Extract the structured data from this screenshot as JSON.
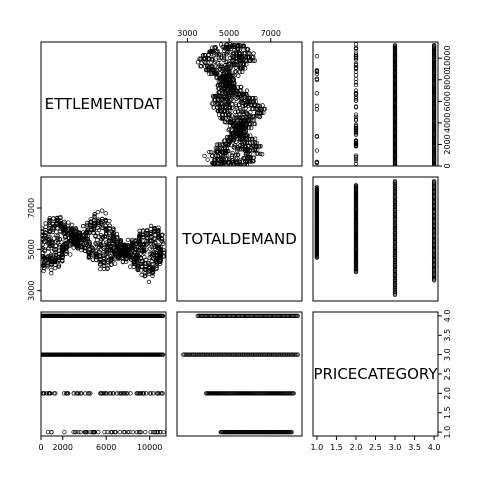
{
  "chart_data": {
    "type": "scatter",
    "variables": [
      {
        "name": "SETTLEMENTDATE",
        "display": "ETTLEMENTDAT",
        "range": [
          0,
          11500
        ]
      },
      {
        "name": "TOTALDEMAND",
        "display": "TOTALDEMAND",
        "range": [
          2500,
          8500
        ]
      },
      {
        "name": "PRICECATEGORY",
        "display": "PRICECATEGORY",
        "range": [
          0.9,
          4.1
        ]
      }
    ],
    "axes": {
      "top_1": {
        "ticks": [
          3000,
          5000,
          7000
        ],
        "labels": [
          "3000",
          "5000",
          "7000"
        ]
      },
      "right_0": {
        "ticks": [
          0,
          2000,
          4000,
          6000,
          8000,
          10000
        ],
        "labels": [
          "0",
          "2000",
          "4000",
          "6000",
          "8000",
          "10000"
        ]
      },
      "left_1": {
        "ticks": [
          3000,
          5000,
          7000
        ],
        "labels": [
          "3000",
          "5000",
          "7000"
        ]
      },
      "bottom_0": {
        "ticks": [
          0,
          2000,
          6000,
          10000
        ],
        "labels": [
          "0",
          "2000",
          "6000",
          "10000"
        ]
      },
      "bottom_2": {
        "ticks": [
          1.0,
          1.5,
          2.0,
          2.5,
          3.0,
          3.5,
          4.0
        ],
        "labels": [
          "1.0",
          "1.5",
          "2.0",
          "2.5",
          "3.0",
          "3.5",
          "4.0"
        ]
      },
      "right_2": {
        "ticks": [
          1.0,
          1.5,
          2.0,
          2.5,
          3.0,
          3.5,
          4.0
        ],
        "labels": [
          "1.0",
          "1.5",
          "2.0",
          "2.5",
          "3.0",
          "3.5",
          "4.0"
        ]
      }
    },
    "series_summary": {
      "SETTLEMENTDATE_range": [
        0,
        11500
      ],
      "TOTALDEMAND_range": [
        2800,
        8300
      ],
      "TOTALDEMAND_typical": [
        4000,
        6000
      ],
      "PRICECATEGORY_levels": [
        1,
        2,
        3,
        4
      ],
      "demand_range_by_category": {
        "1": [
          4600,
          8000
        ],
        "2": [
          3900,
          8100
        ],
        "3": [
          2800,
          8300
        ],
        "4": [
          3500,
          8300
        ]
      }
    },
    "grid": false,
    "legend": "none"
  }
}
